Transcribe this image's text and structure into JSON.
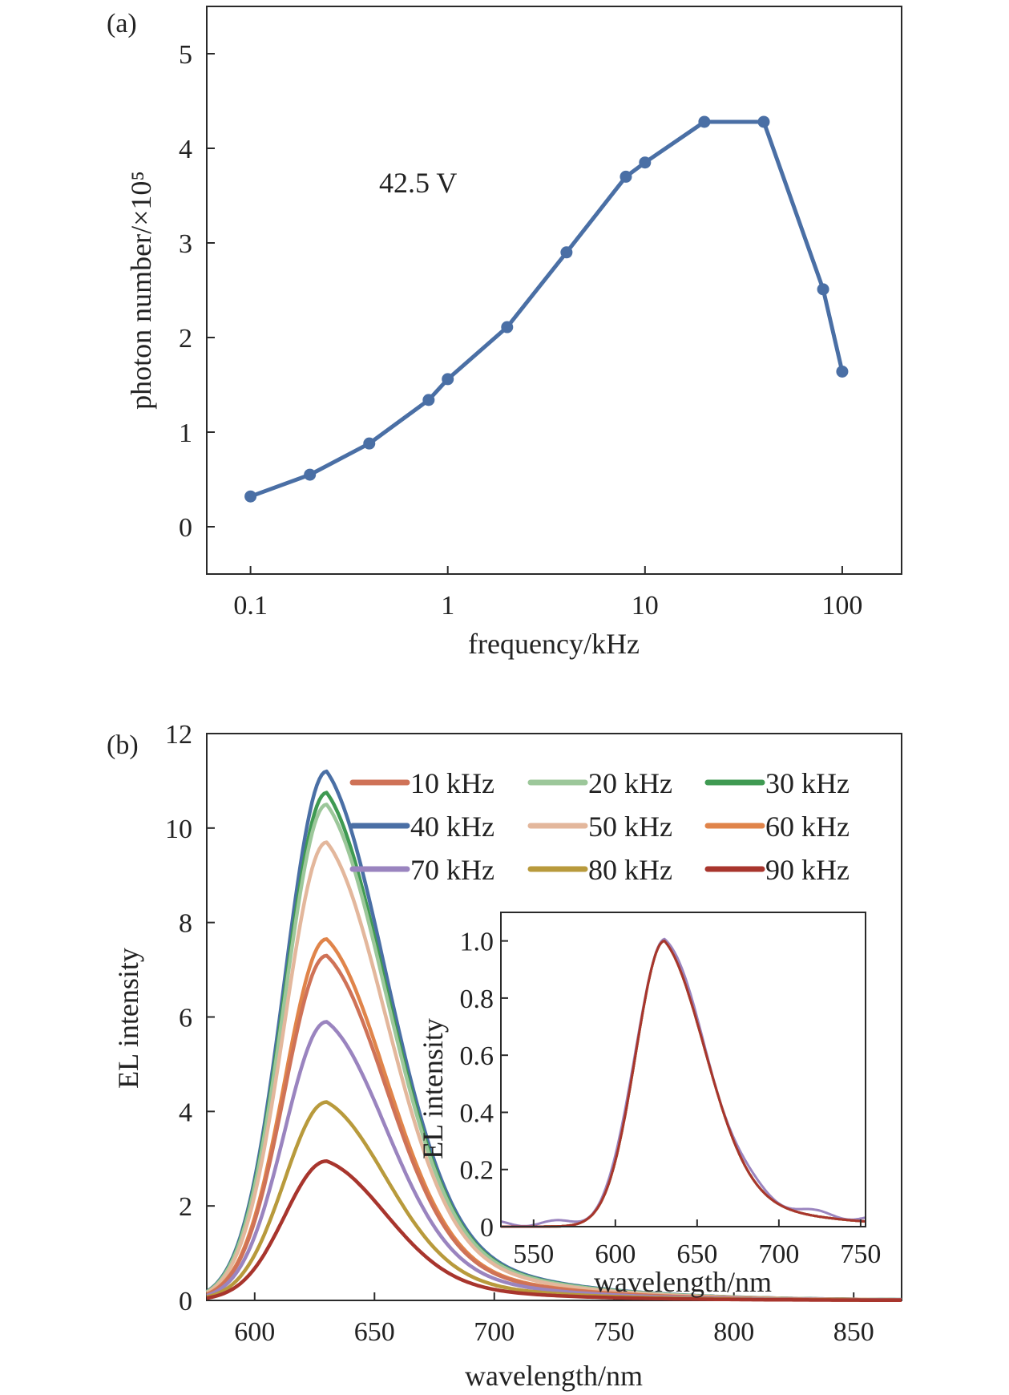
{
  "panel_a_label": "(a)",
  "panel_b_label": "(b)",
  "chart_data": [
    {
      "type": "line",
      "panel": "(a)",
      "xlabel": "frequency/kHz",
      "ylabel": "photon number/×10⁵",
      "xscale": "log",
      "xlim": [
        0.06,
        200
      ],
      "ylim": [
        -0.5,
        5.5
      ],
      "xticks": [
        0.1,
        1,
        10,
        100
      ],
      "xtick_labels": [
        "0.1",
        "1",
        "10",
        "100"
      ],
      "yticks": [
        0,
        1,
        2,
        3,
        4,
        5
      ],
      "ytick_labels": [
        "0",
        "1",
        "2",
        "3",
        "4",
        "5"
      ],
      "annotation": "42.5 V",
      "grid": false,
      "color": "#4a6fa5",
      "series": [
        {
          "x": [
            0.1,
            0.2,
            0.4,
            0.8,
            1,
            2,
            4,
            8,
            10,
            20,
            40,
            80,
            100
          ],
          "y": [
            0.32,
            0.55,
            0.88,
            1.34,
            1.56,
            2.11,
            2.9,
            3.7,
            3.85,
            4.28,
            4.28,
            2.51,
            1.64
          ]
        }
      ]
    },
    {
      "type": "line",
      "panel": "(b)",
      "xlabel": "wavelength/nm",
      "ylabel": "EL intensity",
      "xlim": [
        580,
        870
      ],
      "ylim": [
        0,
        12
      ],
      "xticks": [
        600,
        650,
        700,
        750,
        800,
        850
      ],
      "xtick_labels": [
        "600",
        "650",
        "700",
        "750",
        "800",
        "850"
      ],
      "yticks": [
        0,
        2,
        4,
        6,
        8,
        10,
        12
      ],
      "ytick_labels": [
        "0",
        "2",
        "4",
        "6",
        "8",
        "10",
        "12"
      ],
      "grid": false,
      "legend_position": "top-right",
      "peak_wavelength": 630,
      "series": [
        {
          "name": "10 kHz",
          "color": "#cf7257",
          "peak": 7.3
        },
        {
          "name": "20 kHz",
          "color": "#9cc79a",
          "peak": 10.5
        },
        {
          "name": "30 kHz",
          "color": "#3f9a52",
          "peak": 10.75
        },
        {
          "name": "40 kHz",
          "color": "#4a6fa5",
          "peak": 11.2
        },
        {
          "name": "50 kHz",
          "color": "#e3b79c",
          "peak": 9.7
        },
        {
          "name": "60 kHz",
          "color": "#e0844a",
          "peak": 7.65
        },
        {
          "name": "70 kHz",
          "color": "#9a84bf",
          "peak": 5.9
        },
        {
          "name": "80 kHz",
          "color": "#b89a3c",
          "peak": 4.2
        },
        {
          "name": "90 kHz",
          "color": "#a8352d",
          "peak": 2.95
        }
      ],
      "inset": {
        "xlabel": "wavelength/nm",
        "ylabel": "EL intensity",
        "xlim": [
          530,
          753
        ],
        "ylim": [
          0,
          1.1
        ],
        "xticks": [
          550,
          600,
          650,
          700,
          750
        ],
        "xtick_labels": [
          "550",
          "600",
          "650",
          "700",
          "750"
        ],
        "yticks": [
          0,
          0.2,
          0.4,
          0.6,
          0.8,
          1.0
        ],
        "ytick_labels": [
          "0",
          "0.2",
          "0.4",
          "0.6",
          "0.8",
          "1.0"
        ],
        "peak": 1.0
      }
    }
  ]
}
